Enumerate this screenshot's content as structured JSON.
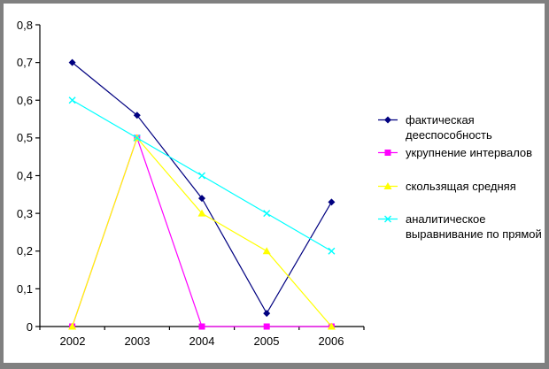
{
  "window": {
    "background": "#ffffff",
    "frame_border_color": "#808080"
  },
  "chart_data": {
    "type": "line",
    "categories": [
      "2002",
      "2003",
      "2004",
      "2005",
      "2006"
    ],
    "series": [
      {
        "name": "фактическая дееспособность",
        "label_lines": [
          "фактическая",
          "дееспособность"
        ],
        "color": "#000080",
        "marker": "diamond",
        "values": [
          0.7,
          0.56,
          0.34,
          0.035,
          0.33
        ]
      },
      {
        "name": "укрупнение интервалов",
        "label_lines": [
          "укрупнение интервалов"
        ],
        "color": "#FF00FF",
        "marker": "square",
        "values": [
          0,
          0.5,
          0,
          0,
          0
        ]
      },
      {
        "name": "скользящая средняя",
        "label_lines": [
          "скользящая средняя"
        ],
        "color": "#FFFF00",
        "marker": "triangle",
        "values": [
          0,
          0.5,
          0.3,
          0.2,
          0
        ]
      },
      {
        "name": "аналитическое выравнивание по прямой",
        "label_lines": [
          "аналитическое",
          "выравнивание по прямой"
        ],
        "color": "#00FFFF",
        "marker": "x",
        "values": [
          0.6,
          0.5,
          0.4,
          0.3,
          0.2
        ]
      }
    ],
    "ylim": [
      0,
      0.8
    ],
    "ytick_step": 0.1,
    "ytick_labels": [
      "0",
      "0,1",
      "0,2",
      "0,3",
      "0,4",
      "0,5",
      "0,6",
      "0,7",
      "0,8"
    ],
    "grid": false,
    "legend_position": "right",
    "axis_color": "#000000"
  }
}
